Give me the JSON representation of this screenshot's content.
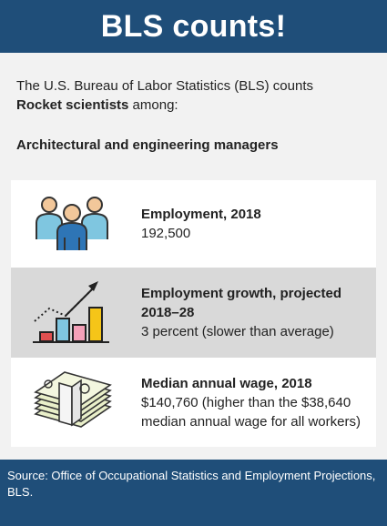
{
  "header": {
    "title": "BLS counts!"
  },
  "intro": {
    "line1": "The U.S. Bureau of Labor Statistics (BLS) counts",
    "occupation": "Rocket scientists",
    "line2_suffix": " among:"
  },
  "subhead": "Architectural and engineering managers",
  "stats": [
    {
      "icon": "people-icon",
      "label": "Employment, 2018",
      "value": "192,500"
    },
    {
      "icon": "growth-chart-icon",
      "label": "Employment growth, projected 2018–28",
      "value": "3 percent (slower than average)"
    },
    {
      "icon": "money-stack-icon",
      "label": "Median annual wage, 2018",
      "value": "$140,760 (higher than the $38,640 median annual wage for all workers)"
    }
  ],
  "footer": {
    "source": "Source: Office of Occupational Statistics and Employment Projections, BLS."
  }
}
